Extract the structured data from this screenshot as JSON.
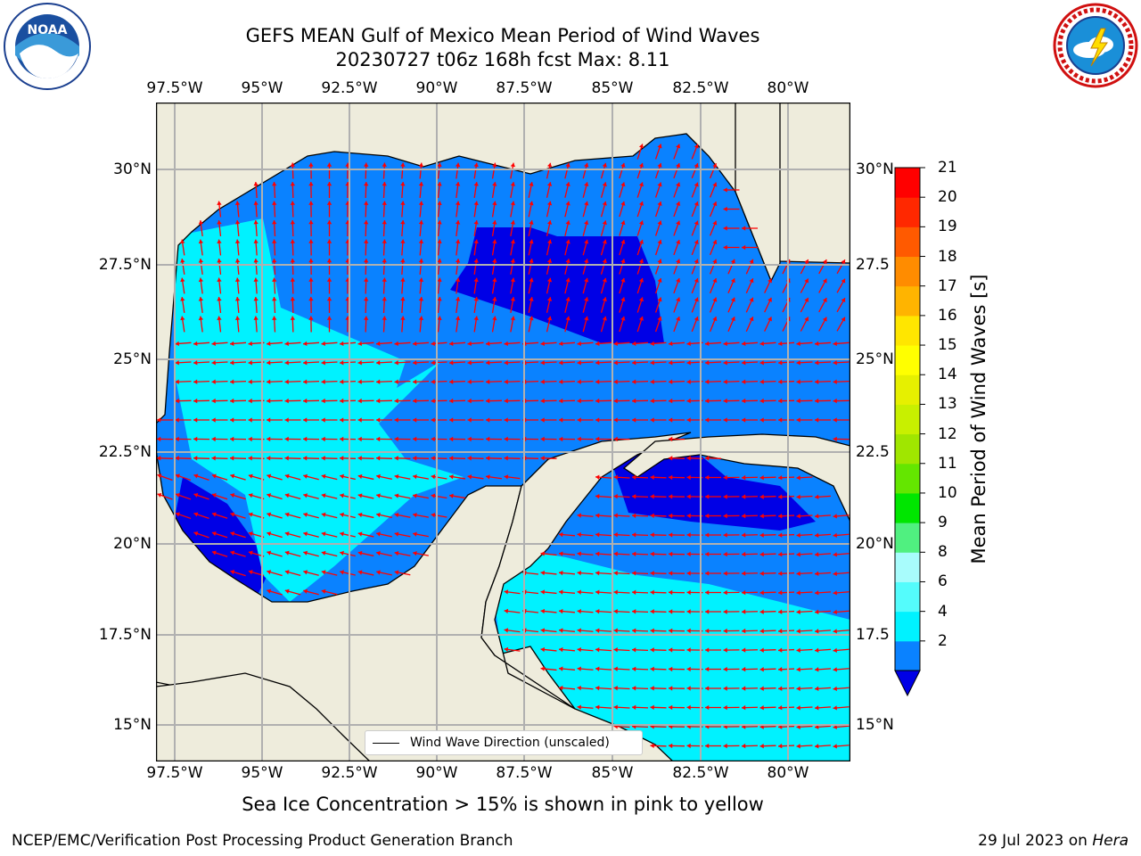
{
  "header": {
    "title_line1": "GEFS MEAN Gulf of Mexico Mean Period of Wind Waves",
    "title_line2": "20230727 t06z 168h fcst   Max: 8.11"
  },
  "logos": {
    "left_logo_text": "NOAA",
    "left_logo_ring": "NATIONAL OCEANIC AND ATMOSPHERIC ADMINISTRATION · U.S. DEPARTMENT OF COMMERCE",
    "right_logo_ring": "NATIONAL WEATHER SERVICE"
  },
  "map": {
    "lon_ticks": [
      "97.5°W",
      "95°W",
      "92.5°W",
      "90°W",
      "87.5°W",
      "85°W",
      "82.5°W",
      "80°W"
    ],
    "lat_ticks_left": [
      "30°N",
      "27.5°N",
      "25°N",
      "22.5°N",
      "20°N",
      "17.5°N",
      "15°N"
    ],
    "lat_ticks_right": [
      "30°N",
      "27.5",
      "25°N",
      "22.5",
      "20°N",
      "17.5",
      "15°N"
    ],
    "legend_label": "Wind Wave Direction (unscaled)",
    "colors": {
      "land": "#eeecdc",
      "level_0_2": "#0000e6",
      "level_2_4": "#0a82ff",
      "level_4_6": "#00f2ff",
      "level_6_8": "#54fcfc",
      "arrow": "#ff0000",
      "grid": "#b0b0b0"
    }
  },
  "colorbar": {
    "label": "Mean Period of Wind Waves [s]",
    "ticks": [
      "21",
      "20",
      "19",
      "18",
      "17",
      "16",
      "15",
      "14",
      "13",
      "12",
      "11",
      "10",
      "9",
      "8",
      "6",
      "4",
      "2"
    ],
    "colors": [
      "#0a82ff",
      "#00f2ff",
      "#54fcfc",
      "#a8fcfc",
      "#50f080",
      "#00e600",
      "#64e600",
      "#a0e600",
      "#c8f000",
      "#e6f000",
      "#ffff00",
      "#ffe600",
      "#ffb400",
      "#ff8c00",
      "#ff5a00",
      "#ff2800",
      "#ff0000"
    ]
  },
  "footer": {
    "note": "Sea Ice Concentration > 15% is shown in pink to yellow",
    "credit_left": "NCEP/EMC/Verification Post Processing Product Generation Branch",
    "credit_date": "29 Jul 2023 on",
    "credit_machine": "Hera"
  }
}
